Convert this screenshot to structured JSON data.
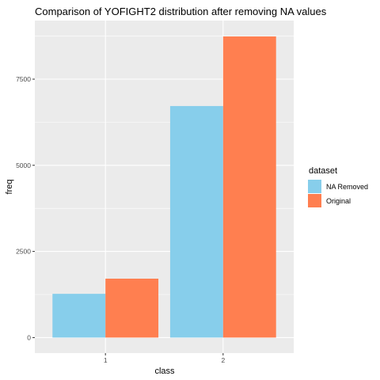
{
  "chart_data": {
    "type": "bar",
    "title": "Comparison of YOFIGHT2 distribution after removing NA values",
    "xlabel": "class",
    "ylabel": "freq",
    "categories": [
      "1",
      "2"
    ],
    "series": [
      {
        "name": "NA Removed",
        "values": [
          1270,
          6720
        ],
        "color": "#87CEEB"
      },
      {
        "name": "Original",
        "values": [
          1710,
          8740
        ],
        "color": "#FF7F50"
      }
    ],
    "yticks": [
      0,
      2500,
      5000,
      7500
    ],
    "ytick_labels": [
      "0",
      "2500",
      "5000",
      "7500"
    ],
    "ylim": [
      -450,
      9200
    ],
    "grid": true,
    "panel_background": "#EBEBEB",
    "legend": {
      "title": "dataset",
      "position": "right"
    }
  }
}
